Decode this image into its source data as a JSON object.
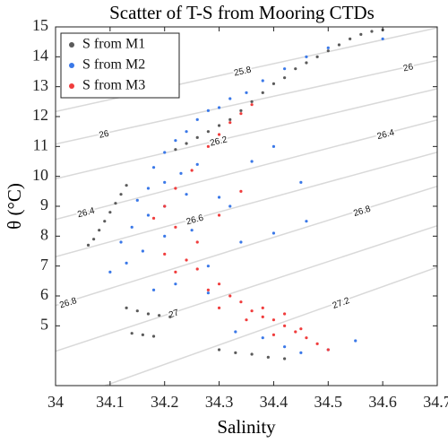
{
  "chart_data": {
    "type": "scatter",
    "title": "Scatter of T-S from Mooring CTDs",
    "x_label": "Salinity",
    "y_label": "θ (°C)",
    "xlim": [
      34,
      34.7
    ],
    "ylim": [
      3,
      15
    ],
    "xticks": [
      34,
      34.1,
      34.2,
      34.3,
      34.4,
      34.5,
      34.6,
      34.7
    ],
    "yticks": [
      5,
      6,
      7,
      8,
      9,
      10,
      11,
      12,
      13,
      14,
      15
    ],
    "legend": "upper left",
    "contours": [
      {
        "level": 25.8,
        "x": [
          34,
          34.7
        ],
        "y": [
          12.17,
          14.97
        ]
      },
      {
        "level": 26,
        "x": [
          34,
          34.7
        ],
        "y": [
          11.08,
          13.88
        ]
      },
      {
        "level": 26.2,
        "x": [
          34,
          34.7
        ],
        "y": [
          9.92,
          12.93
        ]
      },
      {
        "level": 26.4,
        "x": [
          34,
          34.7
        ],
        "y": [
          8.56,
          11.89
        ]
      },
      {
        "level": 26.6,
        "x": [
          34,
          34.7
        ],
        "y": [
          7.31,
          10.81
        ]
      },
      {
        "level": 26.8,
        "x": [
          34,
          34.7
        ],
        "y": [
          5.68,
          9.67
        ]
      },
      {
        "level": 27,
        "x": [
          34,
          34.7
        ],
        "y": [
          4.15,
          8.35
        ]
      },
      {
        "level": 27.2,
        "x": [
          34,
          34.7
        ],
        "y": [
          2.41,
          6.96
        ]
      }
    ],
    "series": [
      {
        "name": "S from M1",
        "color": "#5a5a5a",
        "x": [
          34.22,
          34.24,
          34.26,
          34.28,
          34.3,
          34.32,
          34.34,
          34.36,
          34.38,
          34.4,
          34.42,
          34.44,
          34.46,
          34.48,
          34.5,
          34.52,
          34.54,
          34.56,
          34.58,
          34.6,
          34.06,
          34.07,
          34.08,
          34.09,
          34.1,
          34.11,
          34.12,
          34.13,
          34.13,
          34.15,
          34.17,
          34.19,
          34.21,
          34.14,
          34.16,
          34.18,
          34.3,
          34.33,
          34.36,
          34.39,
          34.42
        ],
        "y": [
          10.9,
          11.1,
          11.3,
          11.5,
          11.7,
          11.9,
          12.2,
          12.5,
          12.8,
          13.1,
          13.3,
          13.6,
          13.8,
          14.0,
          14.2,
          14.4,
          14.6,
          14.75,
          14.85,
          14.9,
          7.7,
          7.9,
          8.2,
          8.5,
          8.8,
          9.1,
          9.4,
          9.7,
          5.6,
          5.5,
          5.4,
          5.35,
          5.3,
          4.75,
          4.7,
          4.65,
          4.2,
          4.1,
          4.05,
          3.95,
          3.9
        ]
      },
      {
        "name": "S from M2",
        "color": "#3a78e8",
        "x": [
          34.18,
          34.2,
          34.22,
          34.24,
          34.26,
          34.28,
          34.3,
          34.32,
          34.35,
          34.38,
          34.42,
          34.46,
          34.5,
          34.15,
          34.17,
          34.2,
          34.23,
          34.26,
          34.12,
          34.14,
          34.17,
          34.2,
          34.24,
          34.1,
          34.13,
          34.16,
          34.2,
          34.25,
          34.3,
          34.18,
          34.22,
          34.28,
          34.34,
          34.4,
          34.46,
          34.33,
          34.38,
          34.42,
          34.45,
          34.5,
          34.55,
          34.36,
          34.4,
          34.32,
          34.28,
          34.45,
          34.6
        ],
        "y": [
          10.3,
          10.8,
          11.2,
          11.5,
          11.9,
          12.2,
          12.3,
          12.6,
          12.8,
          13.2,
          13.6,
          14.0,
          14.3,
          9.2,
          9.6,
          9.8,
          10.1,
          10.4,
          7.8,
          8.3,
          8.7,
          9.0,
          9.4,
          6.8,
          7.1,
          7.5,
          8.0,
          8.2,
          9.3,
          6.2,
          6.4,
          7.0,
          7.8,
          8.1,
          8.5,
          4.8,
          4.6,
          4.3,
          4.1,
          4.2,
          4.5,
          10.5,
          11.0,
          9.0,
          6.1,
          9.8,
          14.6
        ]
      },
      {
        "name": "S from M3",
        "color": "#f03c3c",
        "x": [
          34.3,
          34.32,
          34.34,
          34.36,
          34.28,
          34.25,
          34.22,
          34.2,
          34.18,
          34.22,
          34.26,
          34.24,
          34.2,
          34.22,
          34.26,
          34.3,
          34.28,
          34.32,
          34.34,
          34.3,
          34.36,
          34.38,
          34.4,
          34.42,
          34.44,
          34.46,
          34.48,
          34.5,
          34.38,
          34.42,
          34.45,
          34.35,
          34.4,
          34.3,
          34.34
        ],
        "y": [
          11.4,
          11.8,
          12.1,
          12.4,
          11.0,
          10.2,
          9.6,
          9.0,
          8.6,
          8.3,
          7.8,
          7.2,
          7.4,
          6.8,
          6.9,
          6.4,
          6.2,
          6.0,
          5.8,
          5.6,
          5.5,
          5.3,
          5.2,
          5.0,
          4.8,
          4.6,
          4.4,
          4.2,
          5.6,
          5.4,
          4.9,
          5.2,
          4.7,
          8.7,
          9.5
        ]
      }
    ]
  }
}
